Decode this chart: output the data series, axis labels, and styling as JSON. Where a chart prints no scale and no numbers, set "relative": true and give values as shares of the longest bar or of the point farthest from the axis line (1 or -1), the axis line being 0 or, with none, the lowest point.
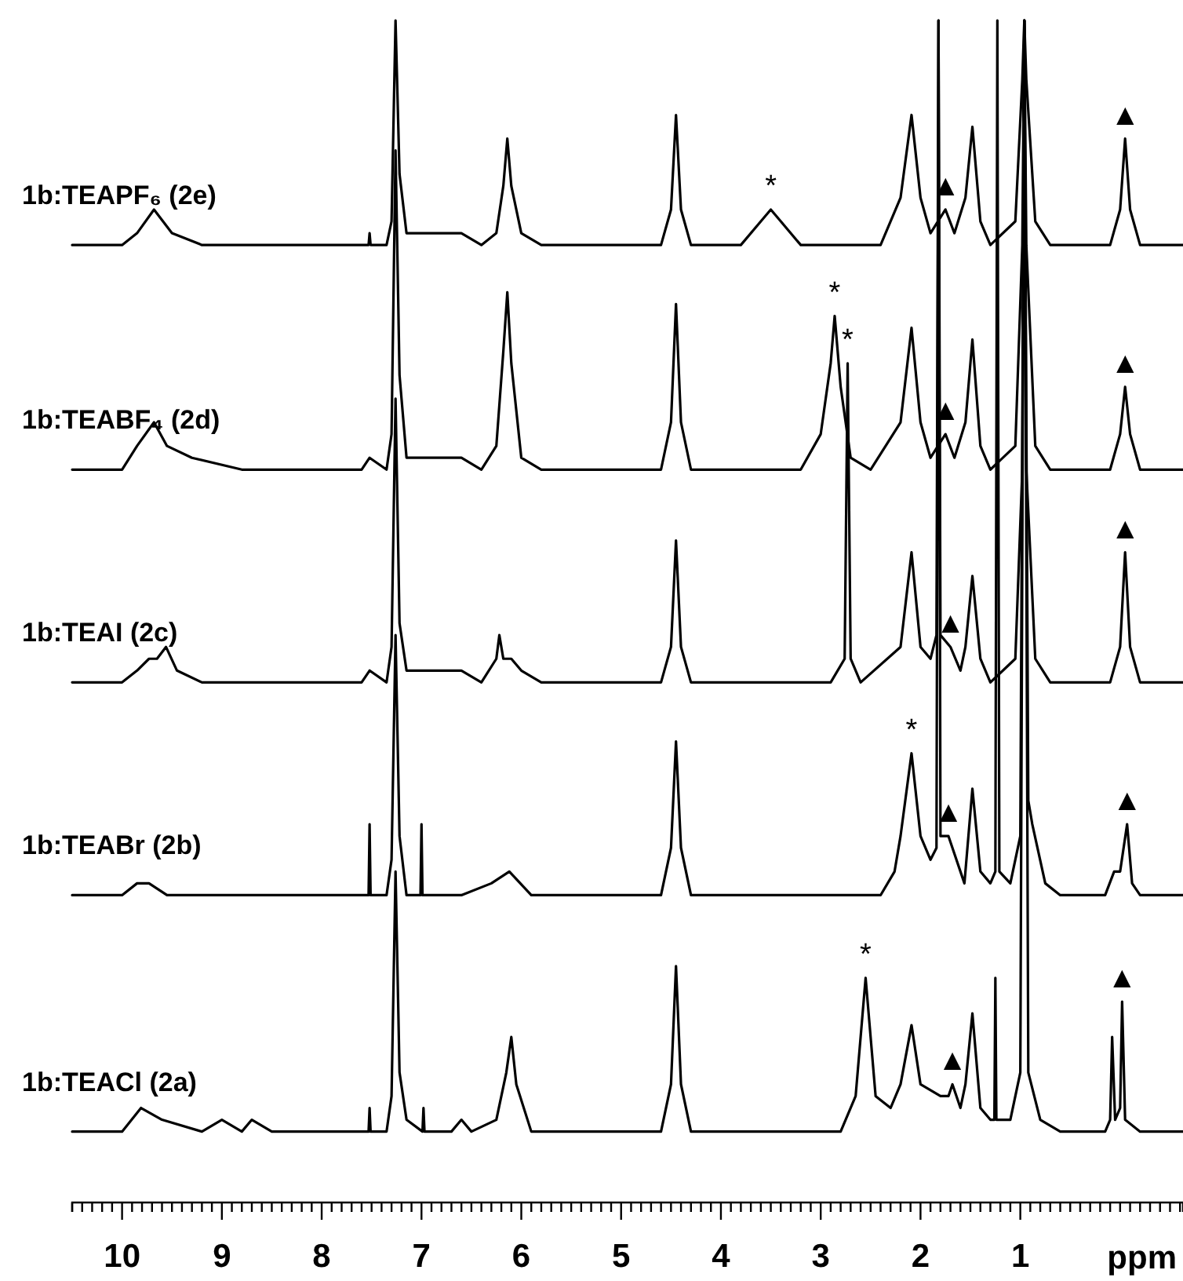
{
  "chart_data": {
    "type": "line",
    "relative": true,
    "xlabel": "ppm",
    "grid": false,
    "legend": false,
    "marker": "none",
    "line_style": "solid",
    "xlim": [
      10.5,
      -0.63
    ],
    "xticks": [
      {
        "value": 10.5,
        "label": null
      },
      {
        "value": 10.4,
        "label": null
      },
      {
        "value": 10.3,
        "label": null
      },
      {
        "value": 10.2,
        "label": null
      },
      {
        "value": 10.1,
        "label": null
      },
      10,
      {
        "value": 9.9,
        "label": null
      },
      {
        "value": 9.8,
        "label": null
      },
      {
        "value": 9.7,
        "label": null
      },
      {
        "value": 9.6,
        "label": null
      },
      {
        "value": 9.5,
        "label": null
      },
      {
        "value": 9.4,
        "label": null
      },
      {
        "value": 9.3,
        "label": null
      },
      {
        "value": 9.2,
        "label": null
      },
      {
        "value": 9.1,
        "label": null
      },
      9,
      {
        "value": 8.9,
        "label": null
      },
      {
        "value": 8.8,
        "label": null
      },
      {
        "value": 8.7,
        "label": null
      },
      {
        "value": 8.6,
        "label": null
      },
      {
        "value": 8.5,
        "label": null
      },
      {
        "value": 8.4,
        "label": null
      },
      {
        "value": 8.3,
        "label": null
      },
      {
        "value": 8.2,
        "label": null
      },
      {
        "value": 8.1,
        "label": null
      },
      8,
      {
        "value": 7.9,
        "label": null
      },
      {
        "value": 7.8,
        "label": null
      },
      {
        "value": 7.7,
        "label": null
      },
      {
        "value": 7.6,
        "label": null
      },
      {
        "value": 7.5,
        "label": null
      },
      {
        "value": 7.4,
        "label": null
      },
      {
        "value": 7.3,
        "label": null
      },
      {
        "value": 7.2,
        "label": null
      },
      {
        "value": 7.1,
        "label": null
      },
      7,
      {
        "value": 6.9,
        "label": null
      },
      {
        "value": 6.8,
        "label": null
      },
      {
        "value": 6.7,
        "label": null
      },
      {
        "value": 6.6,
        "label": null
      },
      {
        "value": 6.5,
        "label": null
      },
      {
        "value": 6.4,
        "label": null
      },
      {
        "value": 6.3,
        "label": null
      },
      {
        "value": 6.2,
        "label": null
      },
      {
        "value": 6.1,
        "label": null
      },
      6,
      {
        "value": 5.9,
        "label": null
      },
      {
        "value": 5.8,
        "label": null
      },
      {
        "value": 5.7,
        "label": null
      },
      {
        "value": 5.6,
        "label": null
      },
      {
        "value": 5.5,
        "label": null
      },
      {
        "value": 5.4,
        "label": null
      },
      {
        "value": 5.3,
        "label": null
      },
      {
        "value": 5.2,
        "label": null
      },
      {
        "value": 5.1,
        "label": null
      },
      5,
      {
        "value": 4.9,
        "label": null
      },
      {
        "value": 4.8,
        "label": null
      },
      {
        "value": 4.7,
        "label": null
      },
      {
        "value": 4.6,
        "label": null
      },
      {
        "value": 4.5,
        "label": null
      },
      {
        "value": 4.4,
        "label": null
      },
      {
        "value": 4.3,
        "label": null
      },
      {
        "value": 4.2,
        "label": null
      },
      {
        "value": 4.1,
        "label": null
      },
      4,
      {
        "value": 3.9,
        "label": null
      },
      {
        "value": 3.8,
        "label": null
      },
      {
        "value": 3.7,
        "label": null
      },
      {
        "value": 3.6,
        "label": null
      },
      {
        "value": 3.5,
        "label": null
      },
      {
        "value": 3.4,
        "label": null
      },
      {
        "value": 3.3,
        "label": null
      },
      {
        "value": 3.2,
        "label": null
      },
      {
        "value": 3.1,
        "label": null
      },
      3,
      {
        "value": 2.9,
        "label": null
      },
      {
        "value": 2.8,
        "label": null
      },
      {
        "value": 2.7,
        "label": null
      },
      {
        "value": 2.6,
        "label": null
      },
      {
        "value": 2.5,
        "label": null
      },
      {
        "value": 2.4,
        "label": null
      },
      {
        "value": 2.3,
        "label": null
      },
      {
        "value": 2.2,
        "label": null
      },
      {
        "value": 2.1,
        "label": null
      },
      2,
      {
        "value": 1.9,
        "label": null
      },
      {
        "value": 1.8,
        "label": null
      },
      {
        "value": 1.7,
        "label": null
      },
      {
        "value": 1.6,
        "label": null
      },
      {
        "value": 1.5,
        "label": null
      },
      {
        "value": 1.4,
        "label": null
      },
      {
        "value": 1.3,
        "label": null
      },
      {
        "value": 1.2,
        "label": null
      },
      {
        "value": 1.1,
        "label": null
      },
      1,
      {
        "value": 0.9,
        "label": null
      },
      {
        "value": 0.8,
        "label": null
      },
      {
        "value": 0.7,
        "label": null
      },
      {
        "value": 0.6,
        "label": null
      },
      {
        "value": 0.5,
        "label": null
      },
      {
        "value": 0.4,
        "label": null
      },
      {
        "value": 0.3,
        "label": null
      },
      {
        "value": 0.2,
        "label": null
      },
      {
        "value": 0.1,
        "label": null
      },
      {
        "value": 0,
        "label": null
      },
      {
        "value": -0.1,
        "label": null
      },
      {
        "value": -0.2,
        "label": null
      },
      {
        "value": -0.3,
        "label": null
      },
      {
        "value": -0.4,
        "label": null
      },
      {
        "value": -0.5,
        "label": null
      },
      {
        "value": -0.6,
        "label": null
      }
    ],
    "series": [
      {
        "name": "1b:TEAPF₆ (2e)",
        "color": "#000000",
        "x": [
          10.5,
          10.0,
          9.85,
          9.68,
          9.5,
          9.2,
          7.6,
          7.53,
          7.52,
          7.51,
          7.35,
          7.3,
          7.26,
          7.22,
          7.15,
          6.6,
          6.4,
          6.25,
          6.18,
          6.14,
          6.1,
          6.0,
          5.8,
          4.6,
          4.5,
          4.45,
          4.4,
          4.3,
          3.8,
          3.6,
          3.5,
          3.4,
          3.2,
          2.4,
          2.2,
          2.09,
          2.0,
          1.9,
          1.75,
          1.66,
          1.55,
          1.48,
          1.4,
          1.3,
          1.05,
          0.98,
          0.96,
          0.94,
          0.85,
          0.7,
          0.1,
          0.0,
          -0.05,
          -0.1,
          -0.2,
          -0.63
        ],
        "values": [
          0.81,
          0.81,
          0.82,
          0.84,
          0.82,
          0.81,
          0.81,
          0.81,
          0.82,
          0.81,
          0.81,
          0.83,
          1.0,
          0.87,
          0.82,
          0.82,
          0.81,
          0.82,
          0.86,
          0.9,
          0.86,
          0.82,
          0.81,
          0.81,
          0.84,
          0.92,
          0.84,
          0.81,
          0.81,
          0.83,
          0.84,
          0.83,
          0.81,
          0.81,
          0.85,
          0.92,
          0.85,
          0.82,
          0.84,
          0.82,
          0.85,
          0.91,
          0.83,
          0.81,
          0.83,
          0.95,
          1.0,
          0.95,
          0.83,
          0.81,
          0.81,
          0.84,
          0.9,
          0.84,
          0.81,
          0.81
        ]
      },
      {
        "name": "1b:TEABF₄ (2d)",
        "color": "#000000",
        "x": [
          10.5,
          10.0,
          9.85,
          9.68,
          9.55,
          9.3,
          8.8,
          7.6,
          7.52,
          7.35,
          7.3,
          7.26,
          7.22,
          7.15,
          6.6,
          6.4,
          6.25,
          6.18,
          6.14,
          6.1,
          6.0,
          5.8,
          4.6,
          4.5,
          4.45,
          4.4,
          4.3,
          3.2,
          3.0,
          2.9,
          2.86,
          2.8,
          2.7,
          2.5,
          2.2,
          2.09,
          2.0,
          1.9,
          1.75,
          1.66,
          1.55,
          1.48,
          1.4,
          1.3,
          1.05,
          0.98,
          0.96,
          0.94,
          0.85,
          0.7,
          0.1,
          0.0,
          -0.05,
          -0.1,
          -0.2,
          -0.63
        ],
        "values": [
          0.62,
          0.62,
          0.64,
          0.66,
          0.64,
          0.63,
          0.62,
          0.62,
          0.63,
          0.62,
          0.65,
          0.89,
          0.7,
          0.63,
          0.63,
          0.62,
          0.64,
          0.72,
          0.77,
          0.71,
          0.63,
          0.62,
          0.62,
          0.66,
          0.76,
          0.66,
          0.62,
          0.62,
          0.65,
          0.71,
          0.75,
          0.69,
          0.63,
          0.62,
          0.66,
          0.74,
          0.66,
          0.63,
          0.65,
          0.63,
          0.66,
          0.73,
          0.64,
          0.62,
          0.64,
          0.81,
          1.0,
          0.81,
          0.64,
          0.62,
          0.62,
          0.65,
          0.69,
          0.65,
          0.62,
          0.62
        ]
      },
      {
        "name": "1b:TEAI (2c)",
        "color": "#000000",
        "x": [
          10.5,
          10.0,
          9.85,
          9.73,
          9.65,
          9.56,
          9.45,
          9.2,
          7.6,
          7.52,
          7.35,
          7.3,
          7.26,
          7.22,
          7.15,
          6.6,
          6.4,
          6.25,
          6.22,
          6.18,
          6.1,
          6.0,
          5.8,
          4.6,
          4.5,
          4.45,
          4.4,
          4.3,
          2.9,
          2.76,
          2.73,
          2.7,
          2.6,
          2.2,
          2.09,
          2.0,
          1.9,
          1.84,
          1.82,
          1.8,
          1.7,
          1.6,
          1.55,
          1.48,
          1.4,
          1.3,
          1.05,
          0.98,
          0.96,
          0.94,
          0.85,
          0.7,
          0.1,
          0.0,
          -0.05,
          -0.1,
          -0.2,
          -0.63
        ],
        "values": [
          0.44,
          0.44,
          0.45,
          0.46,
          0.46,
          0.47,
          0.45,
          0.44,
          0.44,
          0.45,
          0.44,
          0.47,
          0.68,
          0.49,
          0.45,
          0.45,
          0.44,
          0.46,
          0.48,
          0.46,
          0.46,
          0.45,
          0.44,
          0.44,
          0.47,
          0.56,
          0.47,
          0.44,
          0.44,
          0.46,
          0.71,
          0.46,
          0.44,
          0.47,
          0.55,
          0.47,
          0.46,
          0.48,
          1.0,
          0.48,
          0.47,
          0.45,
          0.47,
          0.53,
          0.46,
          0.44,
          0.46,
          0.62,
          1.0,
          0.62,
          0.46,
          0.44,
          0.44,
          0.47,
          0.55,
          0.47,
          0.44,
          0.44
        ]
      },
      {
        "name": "1b:TEABr (2b)",
        "color": "#000000",
        "x": [
          10.5,
          10.0,
          9.85,
          9.73,
          9.55,
          7.6,
          7.53,
          7.52,
          7.51,
          7.35,
          7.3,
          7.26,
          7.22,
          7.15,
          7.01,
          7.0,
          6.99,
          6.6,
          6.3,
          6.12,
          5.9,
          4.6,
          4.5,
          4.45,
          4.4,
          4.3,
          2.4,
          2.26,
          2.2,
          2.09,
          2.0,
          1.9,
          1.84,
          1.82,
          1.8,
          1.72,
          1.56,
          1.48,
          1.4,
          1.3,
          1.25,
          1.23,
          1.21,
          1.1,
          1.0,
          0.96,
          0.92,
          0.88,
          0.75,
          0.6,
          0.15,
          0.06,
          0.0,
          -0.07,
          -0.12,
          -0.2,
          -0.63
        ],
        "values": [
          0.26,
          0.26,
          0.27,
          0.27,
          0.26,
          0.26,
          0.26,
          0.32,
          0.26,
          0.26,
          0.29,
          0.48,
          0.31,
          0.26,
          0.26,
          0.32,
          0.26,
          0.26,
          0.27,
          0.28,
          0.26,
          0.26,
          0.3,
          0.39,
          0.3,
          0.26,
          0.26,
          0.28,
          0.31,
          0.38,
          0.31,
          0.29,
          0.3,
          1.0,
          0.31,
          0.31,
          0.27,
          0.35,
          0.28,
          0.27,
          0.28,
          1.0,
          0.28,
          0.27,
          0.31,
          1.0,
          0.34,
          0.32,
          0.27,
          0.26,
          0.26,
          0.28,
          0.28,
          0.32,
          0.27,
          0.26,
          0.26
        ]
      },
      {
        "name": "1b:TEACl (2a)",
        "color": "#000000",
        "x": [
          10.5,
          10.0,
          9.81,
          9.6,
          9.2,
          9.0,
          8.8,
          8.7,
          8.5,
          7.53,
          7.52,
          7.51,
          7.35,
          7.3,
          7.26,
          7.22,
          7.15,
          6.99,
          6.98,
          6.97,
          6.7,
          6.6,
          6.5,
          6.25,
          6.15,
          6.1,
          6.05,
          5.9,
          4.6,
          4.5,
          4.45,
          4.4,
          4.3,
          2.8,
          2.65,
          2.55,
          2.45,
          2.3,
          2.2,
          2.09,
          2.0,
          1.8,
          1.72,
          1.68,
          1.6,
          1.55,
          1.48,
          1.4,
          1.3,
          1.26,
          1.25,
          1.24,
          1.1,
          1.0,
          0.96,
          0.92,
          0.8,
          0.6,
          0.15,
          0.1,
          0.08,
          0.05,
          0.0,
          -0.02,
          -0.05,
          -0.2,
          -0.63
        ],
        "values": [
          0.06,
          0.06,
          0.08,
          0.07,
          0.06,
          0.07,
          0.06,
          0.07,
          0.06,
          0.06,
          0.08,
          0.06,
          0.06,
          0.09,
          0.28,
          0.11,
          0.07,
          0.06,
          0.08,
          0.06,
          0.06,
          0.07,
          0.06,
          0.07,
          0.11,
          0.14,
          0.1,
          0.06,
          0.06,
          0.1,
          0.2,
          0.1,
          0.06,
          0.06,
          0.09,
          0.19,
          0.09,
          0.08,
          0.1,
          0.15,
          0.1,
          0.09,
          0.09,
          0.1,
          0.08,
          0.1,
          0.16,
          0.08,
          0.07,
          0.07,
          0.19,
          0.07,
          0.07,
          0.11,
          1.0,
          0.11,
          0.07,
          0.06,
          0.06,
          0.07,
          0.14,
          0.07,
          0.08,
          0.17,
          0.07,
          0.06,
          0.06
        ]
      }
    ],
    "annotations": [
      {
        "text": "*",
        "x": 3.5,
        "y": 0.84
      },
      {
        "text": "*",
        "x": 2.86,
        "y": 0.75
      },
      {
        "text": "*",
        "x": 2.73,
        "y": 0.71
      },
      {
        "text": "*",
        "x": 2.09,
        "y": 0.38
      },
      {
        "text": "*",
        "x": 2.55,
        "y": 0.19
      },
      {
        "text": "▲",
        "x": 1.75,
        "y": 0.84
      },
      {
        "text": "▲",
        "x": -0.05,
        "y": 0.9
      },
      {
        "text": "▲",
        "x": 1.75,
        "y": 0.65
      },
      {
        "text": "▲",
        "x": -0.05,
        "y": 0.69
      },
      {
        "text": "▲",
        "x": 1.7,
        "y": 0.47
      },
      {
        "text": "▲",
        "x": -0.05,
        "y": 0.55
      },
      {
        "text": "▲",
        "x": 1.72,
        "y": 0.31
      },
      {
        "text": "▲",
        "x": -0.07,
        "y": 0.32
      },
      {
        "text": "▲",
        "x": 1.68,
        "y": 0.1
      },
      {
        "text": "▲",
        "x": -0.02,
        "y": 0.17
      }
    ]
  }
}
